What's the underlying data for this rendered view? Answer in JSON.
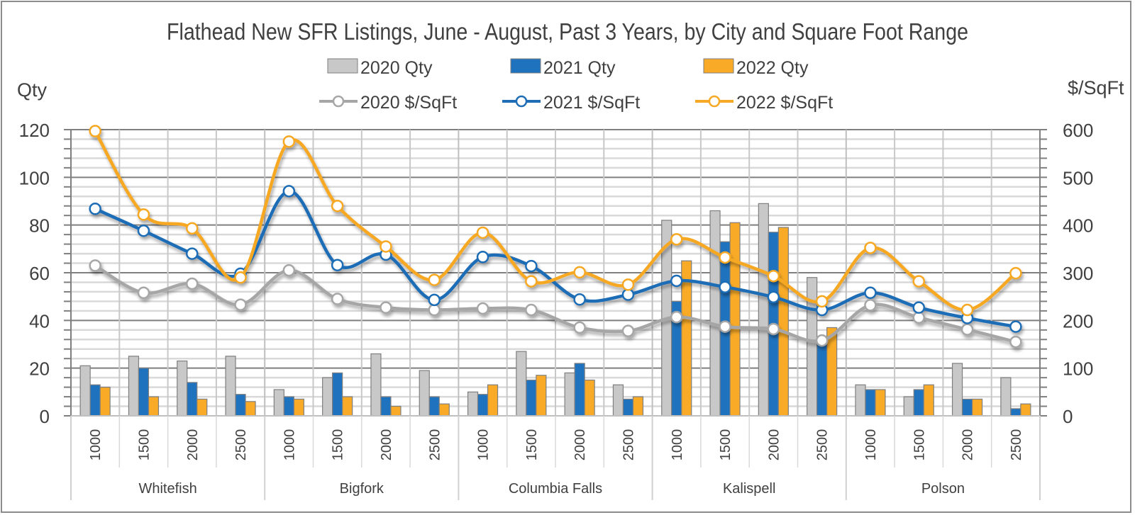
{
  "chart_data": {
    "type": "bar",
    "title": "Flathead New SFR Listings, June - August, Past 3 Years, by City and Square Foot Range",
    "ylabel_left": "Qty",
    "ylabel_right": "$/SqFt",
    "ylim_left": [
      0,
      120
    ],
    "ylim_right": [
      0,
      600
    ],
    "yticks_left": [
      "0",
      "20",
      "40",
      "60",
      "80",
      "100",
      "120"
    ],
    "yticks_right": [
      "0",
      "100",
      "200",
      "300",
      "400",
      "500",
      "600"
    ],
    "grid": true,
    "legend_position": "top",
    "groups": [
      "Whitefish",
      "Bigfork",
      "Columbia Falls",
      "Kalispell",
      "Polson"
    ],
    "subcategories": [
      "1000",
      "1500",
      "2000",
      "2500"
    ],
    "categories": [
      "Whitefish 1000",
      "Whitefish 1500",
      "Whitefish 2000",
      "Whitefish 2500",
      "Bigfork 1000",
      "Bigfork 1500",
      "Bigfork 2000",
      "Bigfork 2500",
      "Columbia Falls 1000",
      "Columbia Falls 1500",
      "Columbia Falls 2000",
      "Columbia Falls 2500",
      "Kalispell 1000",
      "Kalispell 1500",
      "Kalispell 2000",
      "Kalispell 2500",
      "Polson 1000",
      "Polson 1500",
      "Polson 2000",
      "Polson 2500"
    ],
    "bar_series": [
      {
        "name": "2020 Qty",
        "color": "#c8c8c8",
        "axis": "left",
        "values": [
          21,
          25,
          23,
          25,
          11,
          16,
          26,
          19,
          10,
          27,
          18,
          13,
          82,
          86,
          89,
          58,
          13,
          8,
          22,
          16
        ]
      },
      {
        "name": "2021 Qty",
        "color": "#1f72bd",
        "axis": "left",
        "values": [
          13,
          20,
          14,
          9,
          8,
          18,
          8,
          8,
          9,
          15,
          22,
          7,
          48,
          73,
          77,
          32,
          11,
          11,
          7,
          3
        ]
      },
      {
        "name": "2022 Qty",
        "color": "#f9ab27",
        "axis": "left",
        "values": [
          12,
          8,
          7,
          6,
          7,
          8,
          4,
          5,
          13,
          17,
          15,
          8,
          65,
          81,
          79,
          37,
          11,
          13,
          7,
          5
        ]
      }
    ],
    "line_series": [
      {
        "name": "2020 $/SqFt",
        "color": "#a6a6a6",
        "axis": "right",
        "values": [
          315,
          258,
          277,
          233,
          305,
          245,
          227,
          222,
          225,
          222,
          185,
          178,
          207,
          187,
          182,
          158,
          232,
          206,
          181,
          155
        ]
      },
      {
        "name": "2021 $/SqFt",
        "color": "#1f6db6",
        "axis": "right",
        "values": [
          434,
          388,
          340,
          298,
          471,
          316,
          338,
          243,
          333,
          314,
          244,
          254,
          283,
          270,
          249,
          222,
          258,
          227,
          205,
          187
        ]
      },
      {
        "name": "2022 $/SqFt",
        "color": "#f7a824",
        "axis": "right",
        "values": [
          597,
          422,
          393,
          290,
          575,
          440,
          355,
          285,
          384,
          282,
          301,
          275,
          370,
          332,
          293,
          240,
          352,
          282,
          222,
          299
        ]
      }
    ]
  }
}
